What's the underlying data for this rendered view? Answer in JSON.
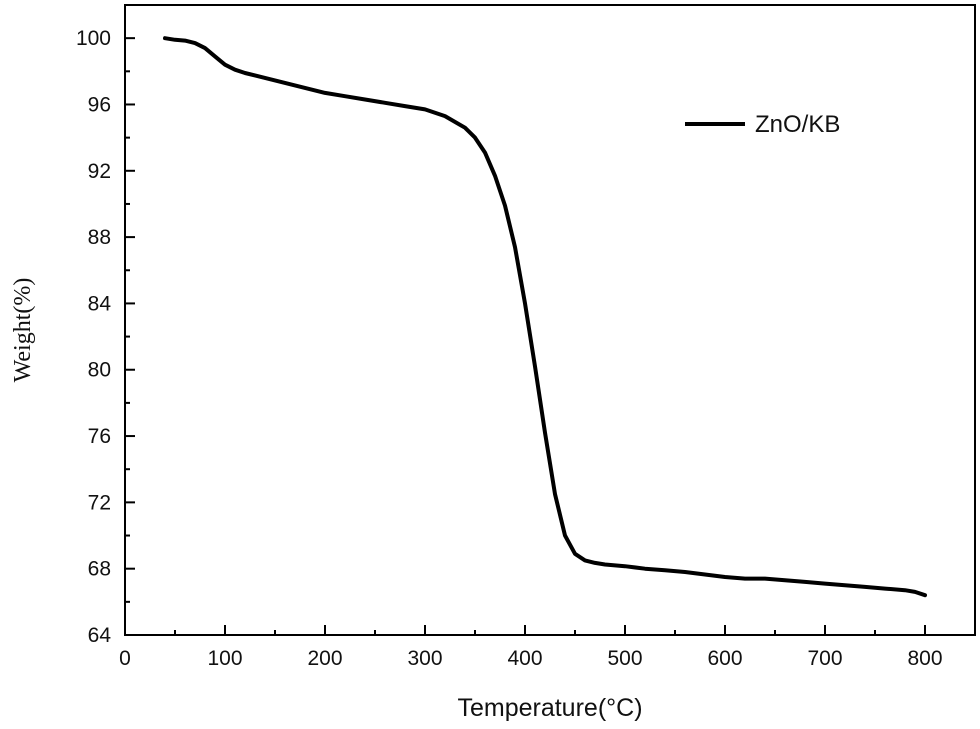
{
  "chart_data": {
    "type": "line",
    "xlabel": "Temperature(°C)",
    "ylabel": "Weight(%)",
    "xlim": [
      0,
      850
    ],
    "ylim": [
      64,
      102
    ],
    "x_ticks": [
      0,
      100,
      200,
      300,
      400,
      500,
      600,
      700,
      800
    ],
    "y_ticks": [
      64,
      68,
      72,
      76,
      80,
      84,
      88,
      92,
      96,
      100
    ],
    "grid": false,
    "legend_position": "top-right",
    "series": [
      {
        "name": "ZnO/KB",
        "color": "#000000",
        "x": [
          40,
          50,
          60,
          70,
          80,
          90,
          100,
          110,
          120,
          140,
          160,
          180,
          200,
          220,
          240,
          260,
          280,
          300,
          320,
          340,
          350,
          360,
          370,
          380,
          390,
          400,
          410,
          420,
          430,
          440,
          450,
          460,
          470,
          480,
          500,
          520,
          540,
          560,
          580,
          600,
          620,
          640,
          660,
          680,
          700,
          720,
          740,
          760,
          780,
          790,
          800
        ],
        "y": [
          100.0,
          99.9,
          99.85,
          99.7,
          99.4,
          98.9,
          98.4,
          98.1,
          97.9,
          97.6,
          97.3,
          97.0,
          96.7,
          96.5,
          96.3,
          96.1,
          95.9,
          95.7,
          95.3,
          94.6,
          94.0,
          93.1,
          91.7,
          89.9,
          87.4,
          84.0,
          80.2,
          76.2,
          72.5,
          70.0,
          68.9,
          68.5,
          68.35,
          68.25,
          68.15,
          68.0,
          67.9,
          67.8,
          67.65,
          67.5,
          67.4,
          67.4,
          67.3,
          67.2,
          67.1,
          67.0,
          66.9,
          66.8,
          66.7,
          66.6,
          66.4
        ]
      }
    ]
  }
}
